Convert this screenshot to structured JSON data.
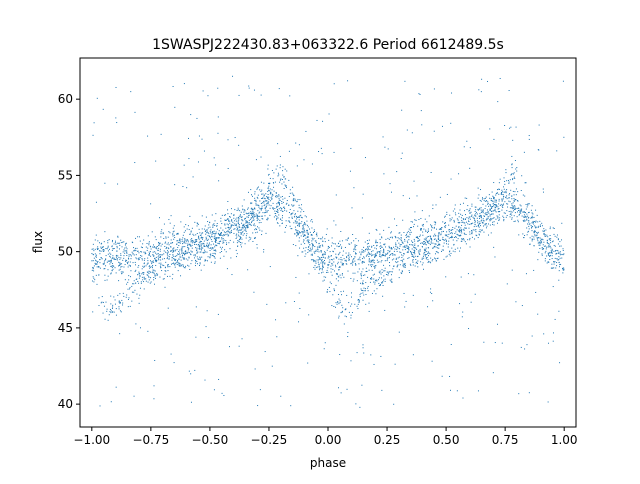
{
  "chart_data": {
    "type": "scatter",
    "title": "1SWASPJ222430.83+063322.6 Period 6612489.5s",
    "xlabel": "phase",
    "ylabel": "flux",
    "xlim": [
      -1.05,
      1.05
    ],
    "ylim": [
      38.5,
      62.7
    ],
    "xticks": [
      {
        "value": -1.0,
        "label": "−1.00"
      },
      {
        "value": -0.75,
        "label": "−0.75"
      },
      {
        "value": -0.5,
        "label": "−0.50"
      },
      {
        "value": -0.25,
        "label": "−0.25"
      },
      {
        "value": 0.0,
        "label": "0.00"
      },
      {
        "value": 0.25,
        "label": "0.25"
      },
      {
        "value": 0.5,
        "label": "0.50"
      },
      {
        "value": 0.75,
        "label": "0.75"
      },
      {
        "value": 1.0,
        "label": "1.00"
      }
    ],
    "yticks": [
      {
        "value": 40,
        "label": "40"
      },
      {
        "value": 45,
        "label": "45"
      },
      {
        "value": 50,
        "label": "50"
      },
      {
        "value": 55,
        "label": "55"
      },
      {
        "value": 60,
        "label": "60"
      }
    ],
    "grid": false,
    "point_color": "#1f77b4",
    "profile_x": [
      -0.98,
      -0.9,
      -0.8,
      -0.7,
      -0.6,
      -0.5,
      -0.4,
      -0.3,
      -0.24,
      -0.17,
      -0.1,
      -0.05,
      0.0,
      0.02,
      0.08,
      0.15,
      0.2,
      0.3,
      0.4,
      0.5,
      0.6,
      0.7,
      0.76,
      0.83,
      0.9,
      0.95,
      1.0
    ],
    "profile_y": [
      49.5,
      49.7,
      49.5,
      50.0,
      50.3,
      50.8,
      51.4,
      52.3,
      53.5,
      52.5,
      51.0,
      50.0,
      49.5,
      49.5,
      49.7,
      49.5,
      50.0,
      50.3,
      50.8,
      51.4,
      52.0,
      52.8,
      53.5,
      52.5,
      51.0,
      50.0,
      49.5
    ],
    "lower_branch_x": [
      -0.97,
      -0.92,
      -0.85,
      -0.75,
      -0.65,
      -0.5,
      -0.35,
      -0.25,
      -0.2,
      0.03,
      0.08,
      0.15,
      0.25,
      0.35,
      0.5,
      0.65,
      0.75,
      0.8
    ],
    "lower_branch_y": [
      47.0,
      46.0,
      47.5,
      48.5,
      49.5,
      50.5,
      52.0,
      54.5,
      55.5,
      47.0,
      46.0,
      47.5,
      48.5,
      49.5,
      50.5,
      52.0,
      54.5,
      55.5
    ],
    "outlier_range": [
      39.5,
      61.5
    ]
  }
}
